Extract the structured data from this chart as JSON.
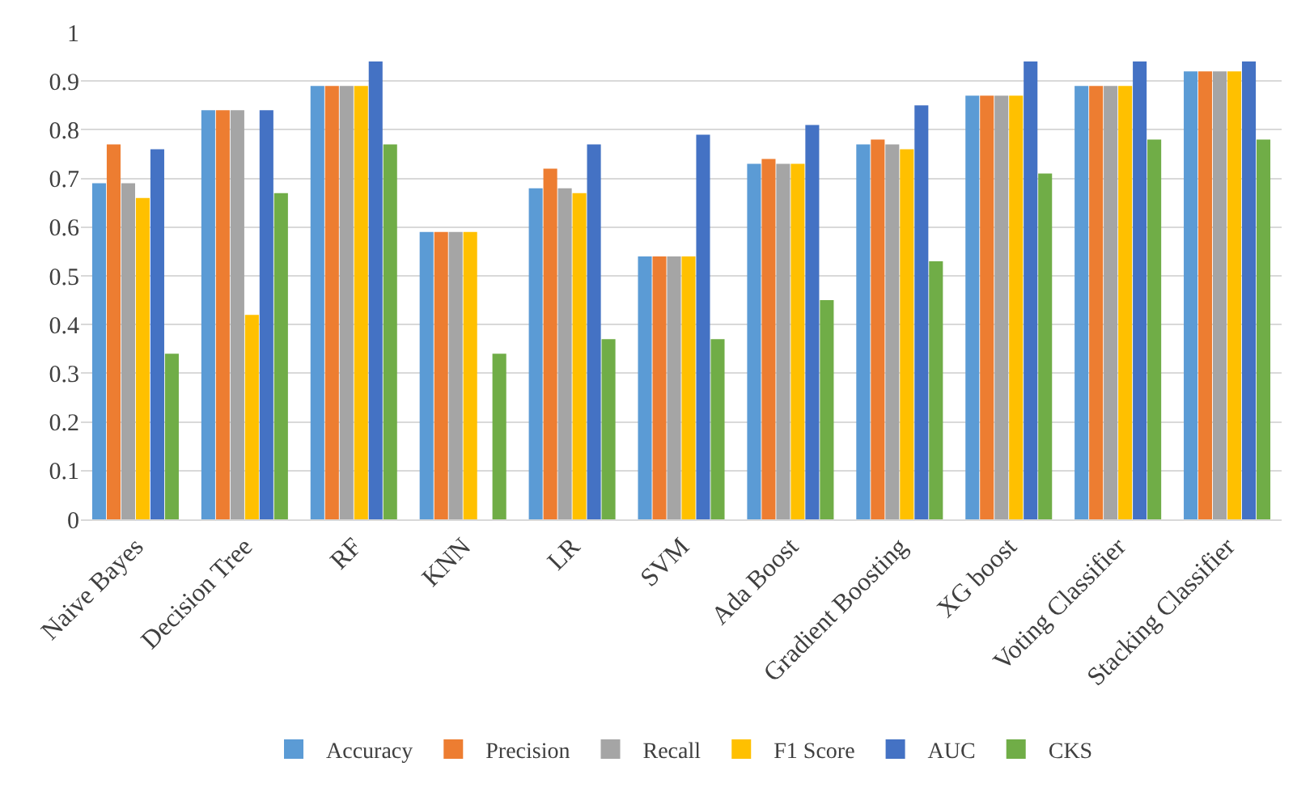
{
  "chart_data": {
    "type": "bar",
    "categories": [
      "Naive Bayes",
      "Decision Tree",
      "RF",
      "KNN",
      "LR",
      "SVM",
      "Ada Boost",
      "Gradient Boosting",
      "XG boost",
      "Voting Classifier",
      "Stacking Classifier"
    ],
    "series": [
      {
        "name": "Accuracy",
        "color": "#5b9bd5",
        "values": [
          0.69,
          0.84,
          0.89,
          0.59,
          0.68,
          0.54,
          0.73,
          0.77,
          0.87,
          0.89,
          0.92
        ]
      },
      {
        "name": "Precision",
        "color": "#ed7d31",
        "values": [
          0.77,
          0.84,
          0.89,
          0.59,
          0.72,
          0.54,
          0.74,
          0.78,
          0.87,
          0.89,
          0.92
        ]
      },
      {
        "name": "Recall",
        "color": "#a5a5a5",
        "values": [
          0.69,
          0.84,
          0.89,
          0.59,
          0.68,
          0.54,
          0.73,
          0.77,
          0.87,
          0.89,
          0.92
        ]
      },
      {
        "name": "F1 Score",
        "color": "#ffc000",
        "values": [
          0.66,
          0.42,
          0.89,
          0.59,
          0.67,
          0.54,
          0.73,
          0.76,
          0.87,
          0.89,
          0.92
        ]
      },
      {
        "name": "AUC",
        "color": "#4472c4",
        "values": [
          0.76,
          0.84,
          0.94,
          null,
          0.77,
          0.79,
          0.81,
          0.85,
          0.94,
          0.94,
          0.94
        ]
      },
      {
        "name": "CKS",
        "color": "#70ad47",
        "values": [
          0.34,
          0.67,
          0.77,
          0.34,
          0.37,
          0.37,
          0.45,
          0.53,
          0.71,
          0.78,
          0.78
        ]
      }
    ],
    "ylim": [
      0,
      1
    ],
    "yticks": [
      0,
      0.1,
      0.2,
      0.3,
      0.4,
      0.5,
      0.6,
      0.7,
      0.8,
      0.9,
      1
    ],
    "grid": "y",
    "legend": "bottom"
  }
}
